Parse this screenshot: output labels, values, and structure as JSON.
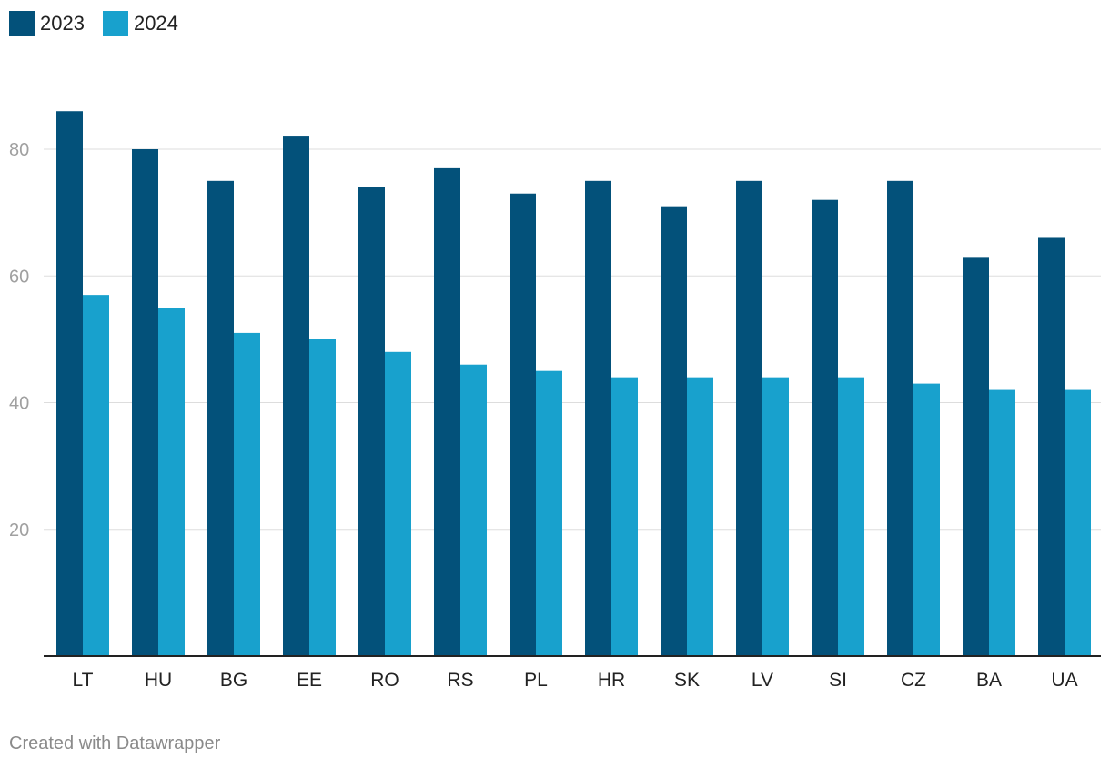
{
  "chart_data": {
    "type": "bar",
    "categories": [
      "LT",
      "HU",
      "BG",
      "EE",
      "RO",
      "RS",
      "PL",
      "HR",
      "SK",
      "LV",
      "SI",
      "CZ",
      "BA",
      "UA"
    ],
    "series": [
      {
        "name": "2023",
        "color": "#03517a",
        "values": [
          86,
          80,
          75,
          82,
          74,
          77,
          73,
          75,
          71,
          75,
          72,
          75,
          63,
          66
        ]
      },
      {
        "name": "2024",
        "color": "#18a1cd",
        "values": [
          57,
          55,
          51,
          50,
          48,
          46,
          45,
          44,
          44,
          44,
          44,
          43,
          42,
          42
        ]
      }
    ],
    "yticks": [
      20,
      40,
      60,
      80
    ],
    "ylim": [
      0,
      89
    ],
    "grid": true,
    "legend_position": "top-left"
  },
  "footer": {
    "credit": "Created with Datawrapper"
  }
}
